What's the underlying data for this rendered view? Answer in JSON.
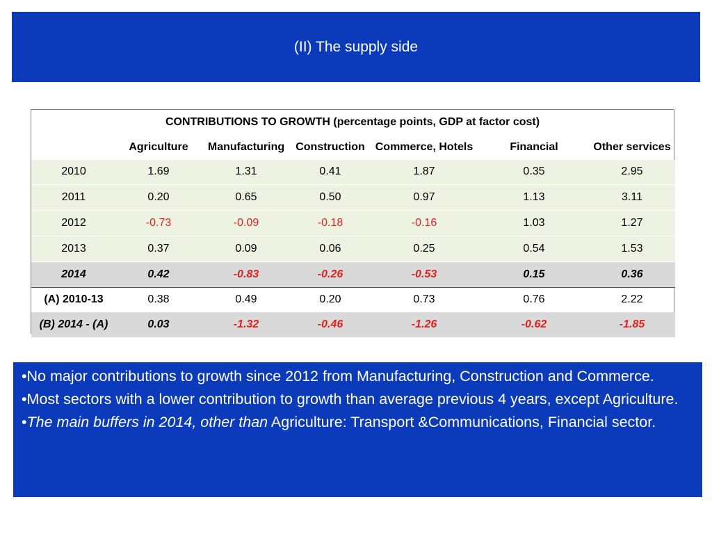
{
  "slide": {
    "title": "(II) The supply side"
  },
  "table": {
    "caption": "CONTRIBUTIONS TO GROWTH (percentage points, GDP at factor cost)",
    "columns": [
      "Agriculture",
      "Manufacturing",
      "Construction",
      "Commerce, Hotels",
      "Financial",
      "Other services"
    ],
    "rows": [
      {
        "label": "2010",
        "values": [
          "1.69",
          "1.31",
          "0.41",
          "1.87",
          "0.35",
          "2.95"
        ]
      },
      {
        "label": "2011",
        "values": [
          "0.20",
          "0.65",
          "0.50",
          "0.97",
          "1.13",
          "3.11"
        ]
      },
      {
        "label": "2012",
        "values": [
          "-0.73",
          "-0.09",
          "-0.18",
          "-0.16",
          "1.03",
          "1.27"
        ]
      },
      {
        "label": "2013",
        "values": [
          "0.37",
          "0.09",
          "0.06",
          "0.25",
          "0.54",
          "1.53"
        ]
      },
      {
        "label": "2014",
        "values": [
          "0.42",
          "-0.83",
          "-0.26",
          "-0.53",
          "0.15",
          "0.36"
        ]
      },
      {
        "label": "(A) 2010-13",
        "values": [
          "0.38",
          "0.49",
          "0.20",
          "0.73",
          "0.76",
          "2.22"
        ]
      },
      {
        "label": "(B) 2014 - (A)",
        "values": [
          "0.03",
          "-1.32",
          "-0.46",
          "-1.26",
          "-0.62",
          "-1.85"
        ]
      }
    ],
    "colors": {
      "negative": "#e0201b",
      "highlight_bg": "#d9d9d9",
      "row_bg": "#eef2e3"
    }
  },
  "bullets": {
    "b1": "No major contributions to growth since 2012 from Manufacturing, Construction and Commerce.",
    "b2": "Most sectors with a lower contribution to growth than average previous 4 years, except Agriculture.",
    "b3_italic": "The main buffers in 2014, other than",
    "b3_rest": " Agriculture: Transport &Communications, Financial sector."
  },
  "theme": {
    "banner_color": "#0b3bbb",
    "text_color": "#ffffff"
  }
}
